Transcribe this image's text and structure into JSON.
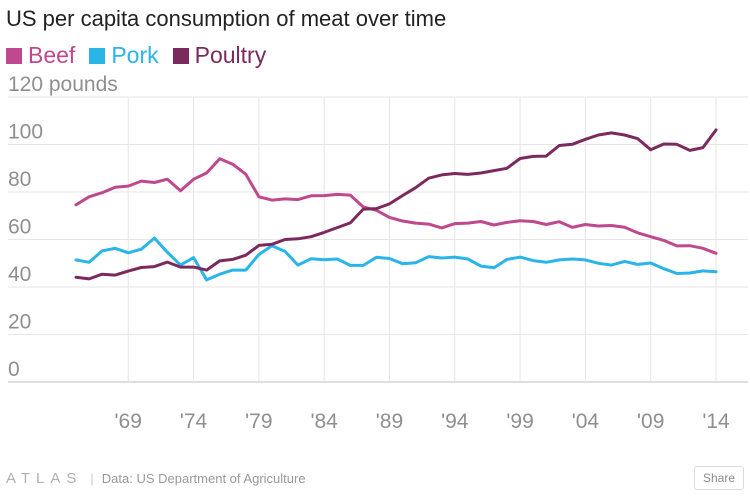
{
  "chart_data": {
    "type": "line",
    "title": "US per capita consumption of meat over time",
    "ylabel_unit": "pounds",
    "ylim": [
      0,
      120
    ],
    "yticks": [
      0,
      20,
      40,
      60,
      80,
      100,
      120
    ],
    "xlim": [
      1964,
      2015
    ],
    "xticks": [
      {
        "value": 1969,
        "label": "'69"
      },
      {
        "value": 1974,
        "label": "'74"
      },
      {
        "value": 1979,
        "label": "'79"
      },
      {
        "value": 1984,
        "label": "'84"
      },
      {
        "value": 1989,
        "label": "'89"
      },
      {
        "value": 1994,
        "label": "'94"
      },
      {
        "value": 1999,
        "label": "'99"
      },
      {
        "value": 2004,
        "label": "'04"
      },
      {
        "value": 2009,
        "label": "'09"
      },
      {
        "value": 2014,
        "label": "'14"
      }
    ],
    "x": [
      1965,
      1966,
      1967,
      1968,
      1969,
      1970,
      1971,
      1972,
      1973,
      1974,
      1975,
      1976,
      1977,
      1978,
      1979,
      1980,
      1981,
      1982,
      1983,
      1984,
      1985,
      1986,
      1987,
      1988,
      1989,
      1990,
      1991,
      1992,
      1993,
      1994,
      1995,
      1996,
      1997,
      1998,
      1999,
      2000,
      2001,
      2002,
      2003,
      2004,
      2005,
      2006,
      2007,
      2008,
      2009,
      2010,
      2011,
      2012,
      2013,
      2014
    ],
    "series": [
      {
        "name": "Beef",
        "color": "#c0488f",
        "values": [
          74.6,
          78.0,
          79.7,
          82.0,
          82.5,
          84.6,
          84.0,
          85.4,
          80.5,
          85.4,
          88.0,
          94.0,
          91.7,
          87.5,
          78.0,
          76.6,
          77.1,
          76.8,
          78.4,
          78.5,
          79.0,
          78.7,
          73.7,
          72.3,
          69.3,
          67.8,
          66.9,
          66.5,
          64.9,
          66.7,
          66.9,
          67.6,
          66.1,
          67.2,
          67.9,
          67.6,
          66.3,
          67.5,
          65.1,
          66.3,
          65.7,
          65.9,
          65.2,
          62.8,
          61.2,
          59.6,
          57.3,
          57.4,
          56.3,
          54.2
        ]
      },
      {
        "name": "Pork",
        "color": "#29b5e8",
        "values": [
          51.4,
          50.4,
          55.2,
          56.3,
          54.4,
          55.9,
          60.6,
          54.6,
          49.2,
          52.4,
          43.0,
          45.4,
          47.1,
          47.1,
          53.7,
          57.4,
          55.0,
          49.2,
          51.9,
          51.5,
          51.8,
          49.1,
          49.1,
          52.5,
          52.0,
          49.8,
          50.2,
          52.8,
          52.2,
          52.6,
          51.8,
          48.8,
          48.1,
          51.6,
          52.6,
          51.1,
          50.4,
          51.4,
          51.8,
          51.4,
          50.0,
          49.2,
          50.8,
          49.5,
          50.1,
          47.7,
          45.7,
          45.9,
          46.8,
          46.4
        ]
      },
      {
        "name": "Poultry",
        "color": "#7b2a5e",
        "values": [
          44.1,
          43.4,
          45.4,
          45.0,
          46.7,
          48.2,
          48.6,
          50.5,
          48.4,
          48.4,
          47.1,
          51.0,
          51.6,
          53.4,
          57.5,
          58.0,
          60.0,
          60.3,
          61.2,
          63.0,
          65.0,
          67.0,
          72.8,
          73.0,
          75.0,
          78.5,
          81.8,
          85.8,
          87.2,
          87.8,
          87.4,
          88.0,
          89.0,
          90.0,
          94.1,
          95.0,
          95.1,
          99.6,
          100.1,
          102.2,
          104.0,
          104.9,
          104.0,
          102.5,
          97.8,
          100.2,
          100.1,
          97.5,
          98.7,
          106.1
        ]
      }
    ]
  },
  "footer": {
    "brand": "ATLAS",
    "separator": "|",
    "source": "Data:  US Department of Agriculture",
    "share_label": "Share"
  }
}
